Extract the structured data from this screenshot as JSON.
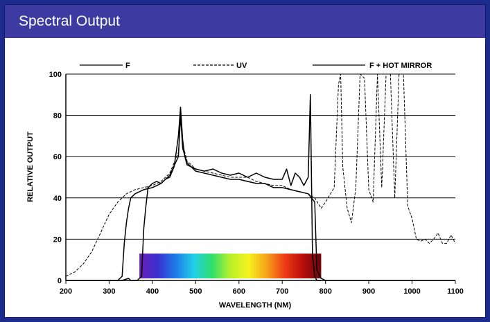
{
  "panel": {
    "title": "Spectral Output"
  },
  "colors": {
    "frame": "#1c2c8c",
    "title_bar": "#3d3ba1",
    "title_text": "#ffffff",
    "lines": "#000000",
    "spectrum": [
      "#6a1fb5",
      "#3a2fd0",
      "#1f7be8",
      "#22d0e8",
      "#2fe06a",
      "#b8f02a",
      "#f5f31e",
      "#f5a21a",
      "#ee3a14",
      "#b90d0d",
      "#6a0606"
    ]
  },
  "chart_data": {
    "type": "line",
    "title": "",
    "xlabel": "WAVELENGTH (NM)",
    "ylabel": "RELATIVE OUTPUT",
    "xlim": [
      200,
      1100
    ],
    "ylim": [
      0,
      100
    ],
    "xticks": [
      200,
      300,
      400,
      500,
      600,
      700,
      800,
      900,
      1000,
      1100
    ],
    "yticks": [
      0,
      20,
      40,
      60,
      80,
      100
    ],
    "grid": "horizontal",
    "legend": "top",
    "visible_spectrum_band": {
      "x_start": 370,
      "x_end": 790,
      "y_top": 13
    },
    "series": [
      {
        "name": "F",
        "style": "solid",
        "x": [
          200,
          300,
          330,
          345,
          350,
          365,
          375,
          380,
          385,
          390,
          400,
          410,
          420,
          430,
          440,
          450,
          455,
          460,
          465,
          470,
          475,
          480,
          490,
          500,
          520,
          540,
          560,
          580,
          600,
          620,
          640,
          660,
          680,
          700,
          710,
          720,
          730,
          740,
          750,
          760,
          765,
          770,
          775,
          780,
          790
        ],
        "y": [
          0,
          0,
          0,
          1,
          0,
          0,
          2,
          25,
          36,
          45,
          47,
          48,
          47,
          49,
          50,
          55,
          62,
          70,
          84,
          68,
          60,
          56,
          55,
          54,
          53,
          54,
          52,
          51,
          52,
          50,
          52,
          50,
          49,
          49,
          54,
          46,
          52,
          50,
          46,
          50,
          90,
          12,
          2,
          0,
          0
        ]
      },
      {
        "name": "UV",
        "style": "dashed",
        "x": [
          200,
          220,
          240,
          260,
          280,
          300,
          320,
          340,
          360,
          380,
          400,
          420,
          440,
          460,
          465,
          470,
          480,
          500,
          520,
          540,
          560,
          580,
          600,
          620,
          640,
          660,
          680,
          700,
          720,
          740,
          760,
          775,
          790,
          800,
          820,
          830,
          835,
          840,
          850,
          860,
          870,
          880,
          890,
          900,
          910,
          920,
          930,
          940,
          950,
          960,
          970,
          980,
          990,
          1000,
          1010,
          1020,
          1030,
          1040,
          1050,
          1060,
          1070,
          1080,
          1090,
          1100
        ],
        "y": [
          2,
          4,
          8,
          14,
          23,
          32,
          38,
          42,
          44,
          45,
          46,
          48,
          52,
          62,
          80,
          66,
          58,
          54,
          53,
          52,
          51,
          50,
          50,
          50,
          48,
          47,
          46,
          46,
          44,
          43,
          42,
          40,
          35,
          38,
          45,
          95,
          100,
          55,
          35,
          28,
          45,
          100,
          98,
          44,
          38,
          100,
          45,
          100,
          100,
          40,
          100,
          100,
          36,
          30,
          20,
          19,
          20,
          18,
          20,
          23,
          18,
          18,
          22,
          18
        ]
      },
      {
        "name": "F + HOT MIRROR",
        "style": "solid",
        "x": [
          200,
          300,
          320,
          330,
          335,
          340,
          345,
          350,
          360,
          380,
          400,
          420,
          440,
          460,
          465,
          470,
          480,
          500,
          520,
          540,
          560,
          580,
          600,
          620,
          640,
          660,
          680,
          700,
          720,
          740,
          760,
          775,
          780,
          790,
          800,
          1100
        ],
        "y": [
          0,
          0,
          0,
          2,
          18,
          28,
          35,
          40,
          42,
          44,
          45,
          47,
          51,
          60,
          80,
          64,
          57,
          53,
          52,
          51,
          50,
          49,
          49,
          48,
          47,
          47,
          45,
          45,
          44,
          43,
          42,
          38,
          5,
          1,
          0,
          0
        ]
      }
    ]
  }
}
